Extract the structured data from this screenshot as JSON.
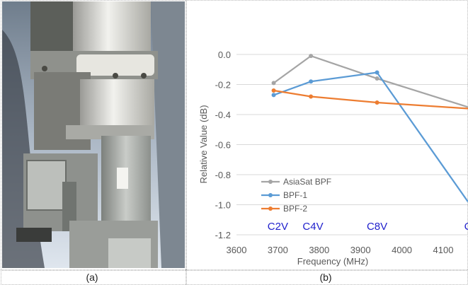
{
  "captions": {
    "a": "(a)",
    "b": "(b)"
  },
  "photo": {
    "description_icon": "antenna-filter-photo"
  },
  "chart_data": {
    "type": "line",
    "xlabel": "Frequency (MHz)",
    "ylabel": "Relative Value (dB)",
    "xlim": [
      3600,
      4160
    ],
    "ylim": [
      -1.2,
      0.0
    ],
    "xticks": [
      3600,
      3700,
      3800,
      3900,
      4000,
      4100
    ],
    "yticks": [
      0.0,
      -0.2,
      -0.4,
      -0.6,
      -0.8,
      -1.0,
      -1.2
    ],
    "ytick_labels": [
      "0.0",
      "-0.2",
      "-0.4",
      "-0.6",
      "-0.8",
      "-1.0",
      "-1.2"
    ],
    "grid": "horizontal",
    "legend_position": "bottom-left",
    "series": [
      {
        "name": "AsiaSat BPF",
        "color": "#a5a5a5",
        "x": [
          3690,
          3780,
          3940,
          4160
        ],
        "y": [
          -0.19,
          -0.01,
          -0.16,
          -0.35
        ]
      },
      {
        "name": "BPF-1",
        "color": "#5b9bd5",
        "x": [
          3690,
          3780,
          3940,
          4160
        ],
        "y": [
          -0.27,
          -0.18,
          -0.12,
          -0.98
        ]
      },
      {
        "name": "BPF-2",
        "color": "#ed7d31",
        "x": [
          3690,
          3780,
          3940,
          4160
        ],
        "y": [
          -0.24,
          -0.28,
          -0.32,
          -0.36
        ]
      }
    ],
    "annotations": [
      {
        "text": "C2V",
        "x": 3700,
        "color": "#1f1fcc"
      },
      {
        "text": "C4V",
        "x": 3785,
        "color": "#1f1fcc"
      },
      {
        "text": "C8V",
        "x": 3940,
        "color": "#1f1fcc"
      },
      {
        "text": "C",
        "x": 4160,
        "color": "#1f1fcc"
      }
    ]
  }
}
